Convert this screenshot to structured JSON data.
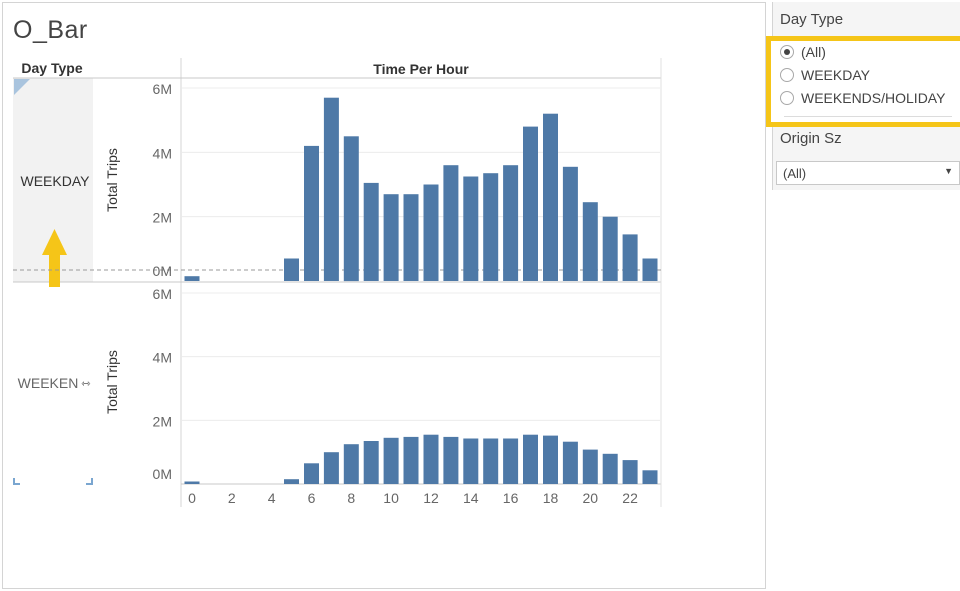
{
  "sheet": {
    "title": "O_Bar"
  },
  "headers": {
    "row_dim": "Day Type",
    "col_dim": "Time Per Hour"
  },
  "filters": {
    "day_type": {
      "title": "Day Type",
      "options": [
        "(All)",
        "WEEKDAY",
        "WEEKENDS/HOLIDAY"
      ],
      "selected": "(All)"
    },
    "origin_sz": {
      "title": "Origin Sz",
      "value": "(All)"
    }
  },
  "colors": {
    "bar": "#4e79a7",
    "highlight": "#f5c518",
    "arrow": "#f5c518"
  },
  "chart_data": {
    "type": "bar",
    "x_label": "Time Per Hour",
    "y_label": "Total Trips",
    "x_ticks": [
      "0",
      "2",
      "4",
      "6",
      "8",
      "10",
      "12",
      "14",
      "16",
      "18",
      "20",
      "22"
    ],
    "y_ticks": [
      "0M",
      "2M",
      "4M",
      "6M"
    ],
    "ylim": [
      0,
      6000000
    ],
    "categories": [
      0,
      1,
      2,
      3,
      4,
      5,
      6,
      7,
      8,
      9,
      10,
      11,
      12,
      13,
      14,
      15,
      16,
      17,
      18,
      19,
      20,
      21,
      22,
      23
    ],
    "panels": [
      {
        "row_label": "WEEKDAY",
        "values": [
          150000,
          0,
          0,
          0,
          0,
          700000,
          4200000,
          5700000,
          4500000,
          3050000,
          2700000,
          2700000,
          3000000,
          3600000,
          3250000,
          3350000,
          3600000,
          4800000,
          5200000,
          3550000,
          2450000,
          2000000,
          1450000,
          700000
        ]
      },
      {
        "row_label": "WEEKENDS/HOLIDAY",
        "row_label_display": "WEEKEN",
        "values": [
          80000,
          0,
          0,
          0,
          0,
          150000,
          650000,
          1000000,
          1250000,
          1350000,
          1450000,
          1480000,
          1550000,
          1480000,
          1430000,
          1430000,
          1430000,
          1550000,
          1520000,
          1330000,
          1080000,
          950000,
          750000,
          430000
        ]
      }
    ]
  }
}
